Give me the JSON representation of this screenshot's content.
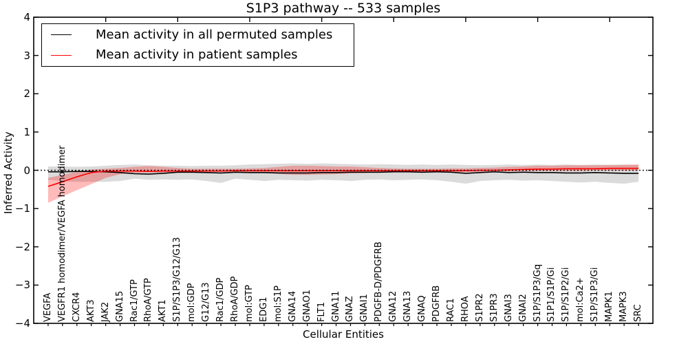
{
  "chart_data": {
    "type": "line",
    "title": "S1P3 pathway -- 533 samples",
    "xlabel": "Cellular Entities",
    "ylabel": "Inferred Activity",
    "ylim": [
      -4,
      4
    ],
    "y_tick_values": [
      4,
      3,
      2,
      1,
      0,
      -1,
      -2,
      -3,
      -4
    ],
    "y_tick_labels": [
      "4",
      "3",
      "2",
      "1",
      "0",
      "−1",
      "−2",
      "−3",
      "−4"
    ],
    "grid": false,
    "legend_position": "upper left",
    "categories": [
      "VEGFA",
      "VEGFR1 homodimer/VEGFA homodimer",
      "CXCR4",
      "AKT3",
      "JAK2",
      "GNA15",
      "Rac1/GTP",
      "RhoA/GTP",
      "AKT1",
      "S1P/S1P3/G12/G13",
      "mol:GDP",
      "G12/G13",
      "Rac1/GDP",
      "RhoA/GDP",
      "mol:GTP",
      "EDG1",
      "mol:S1P",
      "GNA14",
      "GNAO1",
      "FLT1",
      "GNA11",
      "GNAZ",
      "GNAI1",
      "PDGFB-D/PDGFRB",
      "GNA12",
      "GNA13",
      "GNAQ",
      "PDGFRB",
      "RAC1",
      "RHOA",
      "S1PR2",
      "S1PR3",
      "GNAI3",
      "GNAI2",
      "S1P/S1P3/Gq",
      "S1P1/S1P/Gi",
      "S1P/S1P2/Gi",
      "mol:Ca2+",
      "S1P/S1P3/Gi",
      "MAPK1",
      "MAPK3",
      "SRC"
    ],
    "series": [
      {
        "name": "Mean activity in all permuted samples",
        "color": "#000000",
        "band_color": "rgba(0,0,0,0.14)",
        "values": [
          -0.04,
          -0.04,
          -0.03,
          -0.03,
          -0.04,
          -0.06,
          -0.09,
          -0.1,
          -0.08,
          -0.05,
          -0.05,
          -0.06,
          -0.07,
          -0.05,
          -0.06,
          -0.06,
          -0.07,
          -0.07,
          -0.07,
          -0.06,
          -0.06,
          -0.05,
          -0.05,
          -0.05,
          -0.04,
          -0.04,
          -0.05,
          -0.04,
          -0.05,
          -0.08,
          -0.06,
          -0.04,
          -0.06,
          -0.05,
          -0.06,
          -0.06,
          -0.07,
          -0.07,
          -0.06,
          -0.07,
          -0.08,
          -0.08
        ],
        "band_upper": [
          0.1,
          0.1,
          0.09,
          0.1,
          0.12,
          0.14,
          0.15,
          0.13,
          0.12,
          0.12,
          0.11,
          0.12,
          0.12,
          0.13,
          0.15,
          0.16,
          0.17,
          0.18,
          0.17,
          0.18,
          0.17,
          0.16,
          0.15,
          0.16,
          0.15,
          0.14,
          0.15,
          0.14,
          0.15,
          0.14,
          0.13,
          0.14,
          0.15,
          0.14,
          0.15,
          0.14,
          0.15,
          0.14,
          0.15,
          0.14,
          0.15,
          0.14
        ],
        "band_lower": [
          -0.25,
          -0.28,
          -0.3,
          -0.3,
          -0.3,
          -0.28,
          -0.22,
          -0.25,
          -0.24,
          -0.25,
          -0.24,
          -0.28,
          -0.33,
          -0.22,
          -0.25,
          -0.28,
          -0.25,
          -0.26,
          -0.27,
          -0.25,
          -0.26,
          -0.28,
          -0.25,
          -0.24,
          -0.26,
          -0.25,
          -0.24,
          -0.26,
          -0.3,
          -0.35,
          -0.28,
          -0.26,
          -0.25,
          -0.27,
          -0.26,
          -0.28,
          -0.3,
          -0.32,
          -0.3,
          -0.33,
          -0.35,
          -0.3
        ]
      },
      {
        "name": "Mean activity in patient samples",
        "color": "#ff0000",
        "band_color": "rgba(255,0,0,0.27)",
        "values": [
          -0.42,
          -0.3,
          -0.17,
          -0.06,
          -0.02,
          -0.02,
          -0.02,
          -0.03,
          -0.02,
          -0.02,
          -0.02,
          -0.02,
          -0.02,
          -0.01,
          -0.01,
          -0.01,
          -0.01,
          -0.01,
          -0.01,
          -0.01,
          -0.01,
          -0.01,
          -0.01,
          -0.01,
          -0.01,
          -0.01,
          -0.01,
          -0.01,
          -0.01,
          -0.01,
          0.0,
          0.0,
          0.01,
          0.02,
          0.03,
          0.03,
          0.04,
          0.04,
          0.04,
          0.05,
          0.05,
          0.05
        ],
        "band_upper": [
          -0.2,
          -0.12,
          -0.04,
          0.02,
          0.04,
          0.06,
          0.09,
          0.11,
          0.09,
          0.06,
          0.04,
          0.04,
          0.04,
          0.04,
          0.05,
          0.06,
          0.09,
          0.12,
          0.12,
          0.11,
          0.1,
          0.1,
          0.08,
          0.06,
          0.05,
          0.04,
          0.04,
          0.04,
          0.05,
          0.05,
          0.06,
          0.07,
          0.09,
          0.1,
          0.12,
          0.12,
          0.13,
          0.13,
          0.13,
          0.14,
          0.14,
          0.15
        ],
        "band_lower": [
          -0.85,
          -0.68,
          -0.52,
          -0.36,
          -0.2,
          -0.1,
          -0.07,
          -0.06,
          -0.06,
          -0.05,
          -0.05,
          -0.04,
          -0.04,
          -0.04,
          -0.05,
          -0.06,
          -0.09,
          -0.12,
          -0.12,
          -0.11,
          -0.1,
          -0.08,
          -0.07,
          -0.05,
          -0.04,
          -0.04,
          -0.04,
          -0.04,
          -0.04,
          -0.05,
          -0.04,
          -0.03,
          -0.03,
          -0.02,
          -0.02,
          -0.02,
          -0.02,
          -0.02,
          -0.01,
          -0.01,
          -0.01,
          -0.01
        ]
      }
    ],
    "reference_line": {
      "y": 0,
      "style": "dotted",
      "color": "#000000"
    }
  }
}
